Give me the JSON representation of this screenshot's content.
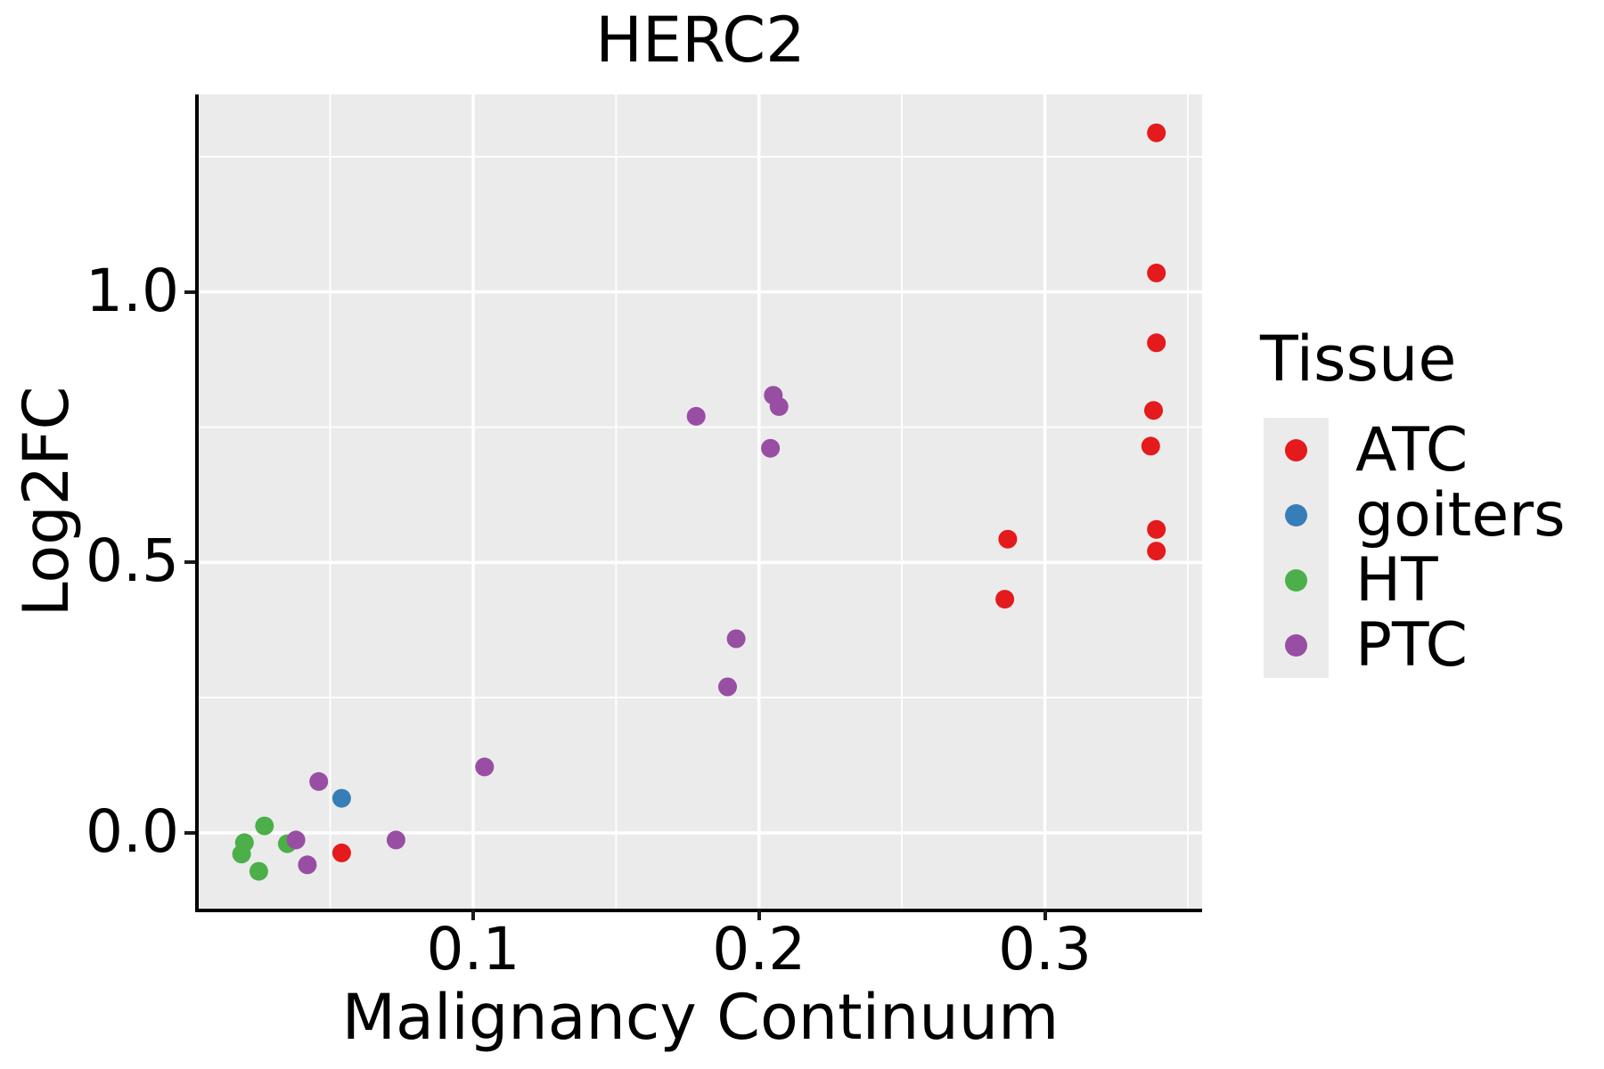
{
  "figure": {
    "title": "HERC2"
  },
  "chart_data": {
    "type": "scatter",
    "title": "HERC2",
    "xlabel": "Malignancy Continuum",
    "ylabel": "Log2FC",
    "legend_title": "Tissue",
    "legend_position": "right",
    "grid": true,
    "panel_bg": "#EBEBEB",
    "grid_color": "#FFFFFF",
    "legend_key_bg": "#EBEBEB",
    "xlim": [
      0.004,
      0.355
    ],
    "ylim": [
      -0.14,
      1.365
    ],
    "x_ticks": {
      "values": [
        0.1,
        0.2,
        0.3
      ],
      "labels": [
        "0.1",
        "0.2",
        "0.3"
      ]
    },
    "y_ticks": {
      "values": [
        0.0,
        0.5,
        1.0
      ],
      "labels": [
        "0.0",
        "0.5",
        "1.0"
      ]
    },
    "x_minor_gridlines": [
      0.05,
      0.15,
      0.25,
      0.35
    ],
    "y_minor_gridlines": [
      0.25,
      0.75,
      1.25
    ],
    "series": [
      {
        "name": "ATC",
        "color": "#E41A1C",
        "points": [
          [
            0.339,
            1.294
          ],
          [
            0.339,
            1.035
          ],
          [
            0.339,
            0.906
          ],
          [
            0.338,
            0.781
          ],
          [
            0.337,
            0.715
          ],
          [
            0.339,
            0.561
          ],
          [
            0.339,
            0.521
          ],
          [
            0.287,
            0.543
          ],
          [
            0.286,
            0.432
          ],
          [
            0.054,
            -0.037
          ]
        ]
      },
      {
        "name": "goiters",
        "color": "#377EB8",
        "points": [
          [
            0.054,
            0.064
          ]
        ]
      },
      {
        "name": "HT",
        "color": "#4DAF4A",
        "points": [
          [
            0.027,
            0.013
          ],
          [
            0.02,
            -0.018
          ],
          [
            0.019,
            -0.039
          ],
          [
            0.025,
            -0.071
          ],
          [
            0.035,
            -0.02
          ]
        ]
      },
      {
        "name": "PTC",
        "color": "#984EA3",
        "points": [
          [
            0.046,
            0.095
          ],
          [
            0.038,
            -0.013
          ],
          [
            0.042,
            -0.059
          ],
          [
            0.073,
            -0.013
          ],
          [
            0.104,
            0.122
          ],
          [
            0.178,
            0.77
          ],
          [
            0.205,
            0.809
          ],
          [
            0.207,
            0.788
          ],
          [
            0.204,
            0.711
          ],
          [
            0.192,
            0.359
          ],
          [
            0.189,
            0.27
          ]
        ]
      }
    ]
  }
}
